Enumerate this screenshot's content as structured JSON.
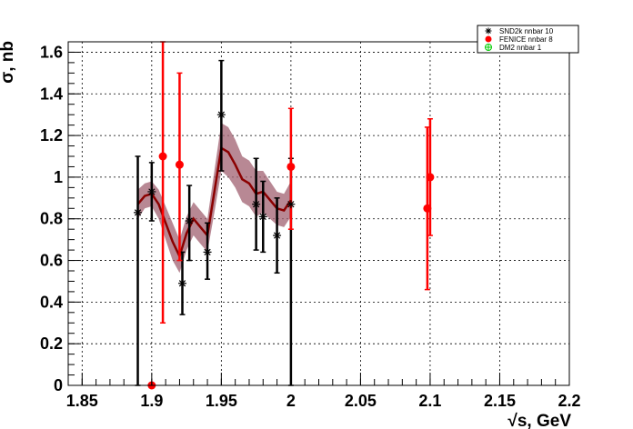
{
  "chart_data": {
    "type": "scatter",
    "title": "",
    "xlabel": "√s, GeV",
    "ylabel": "σ, nb",
    "xlim": [
      1.84,
      2.2
    ],
    "ylim": [
      0,
      1.65
    ],
    "grid": true,
    "legend_position": "top-right",
    "x_ticks": [
      "1.85",
      "1.9",
      "1.95",
      "2",
      "2.05",
      "2.1",
      "2.15",
      "2.2"
    ],
    "y_ticks": [
      "0",
      "0.2",
      "0.4",
      "0.6",
      "0.8",
      "1",
      "1.2",
      "1.4",
      "1.6"
    ],
    "series": [
      {
        "name": "SND2k nnbar 10",
        "color": "#000000",
        "marker": "star",
        "points": [
          {
            "x": 1.89,
            "y": 0.83,
            "lo": 0.0,
            "hi": 1.1
          },
          {
            "x": 1.9,
            "y": 0.93,
            "lo": 0.79,
            "hi": 1.07
          },
          {
            "x": 1.922,
            "y": 0.49,
            "lo": 0.34,
            "hi": 0.64
          },
          {
            "x": 1.927,
            "y": 0.79,
            "lo": 0.6,
            "hi": 0.96
          },
          {
            "x": 1.94,
            "y": 0.64,
            "lo": 0.51,
            "hi": 0.78
          },
          {
            "x": 1.95,
            "y": 1.3,
            "lo": 1.03,
            "hi": 1.56
          },
          {
            "x": 1.975,
            "y": 0.87,
            "lo": 0.65,
            "hi": 1.09
          },
          {
            "x": 1.98,
            "y": 0.81,
            "lo": 0.64,
            "hi": 0.98
          },
          {
            "x": 1.99,
            "y": 0.72,
            "lo": 0.54,
            "hi": 0.9
          },
          {
            "x": 2.0,
            "y": 0.87,
            "lo": 0.0,
            "hi": 1.09
          }
        ]
      },
      {
        "name": "FENICE nnbar 8",
        "color": "#ff0000",
        "marker": "circle",
        "points": [
          {
            "x": 1.9,
            "y": 0.0,
            "lo": 0.0,
            "hi": 0.0
          },
          {
            "x": 1.908,
            "y": 1.1,
            "lo": 0.3,
            "hi": 1.65
          },
          {
            "x": 1.92,
            "y": 1.06,
            "lo": 0.6,
            "hi": 1.5
          },
          {
            "x": 2.0,
            "y": 1.05,
            "lo": 0.75,
            "hi": 1.33
          },
          {
            "x": 2.098,
            "y": 0.85,
            "lo": 0.46,
            "hi": 1.24
          },
          {
            "x": 2.1,
            "y": 1.0,
            "lo": 0.72,
            "hi": 1.28
          }
        ]
      },
      {
        "name": "DM2 nnbar 1",
        "color": "#00cc00",
        "marker": "open-cross",
        "points": []
      }
    ],
    "fit_curve": {
      "color": "#8b0000",
      "band_color": "#a06070",
      "x": [
        1.89,
        1.895,
        1.9,
        1.905,
        1.91,
        1.915,
        1.92,
        1.925,
        1.93,
        1.935,
        1.94,
        1.945,
        1.95,
        1.955,
        1.96,
        1.965,
        1.97,
        1.975,
        1.98,
        1.985,
        1.99,
        1.995,
        2.0
      ],
      "y": [
        0.87,
        0.91,
        0.92,
        0.87,
        0.78,
        0.69,
        0.62,
        0.73,
        0.8,
        0.76,
        0.72,
        0.93,
        1.14,
        1.12,
        1.06,
        0.99,
        0.97,
        0.92,
        0.93,
        0.89,
        0.85,
        0.84,
        0.89
      ],
      "band_lo": [
        0.8,
        0.85,
        0.86,
        0.8,
        0.7,
        0.6,
        0.54,
        0.65,
        0.72,
        0.68,
        0.64,
        0.83,
        1.03,
        1.0,
        0.95,
        0.88,
        0.86,
        0.81,
        0.83,
        0.8,
        0.77,
        0.76,
        0.81
      ],
      "band_hi": [
        0.94,
        0.97,
        0.98,
        0.94,
        0.86,
        0.78,
        0.7,
        0.81,
        0.88,
        0.84,
        0.8,
        1.03,
        1.26,
        1.24,
        1.18,
        1.1,
        1.08,
        1.03,
        1.03,
        0.98,
        0.93,
        0.92,
        0.98
      ]
    }
  }
}
